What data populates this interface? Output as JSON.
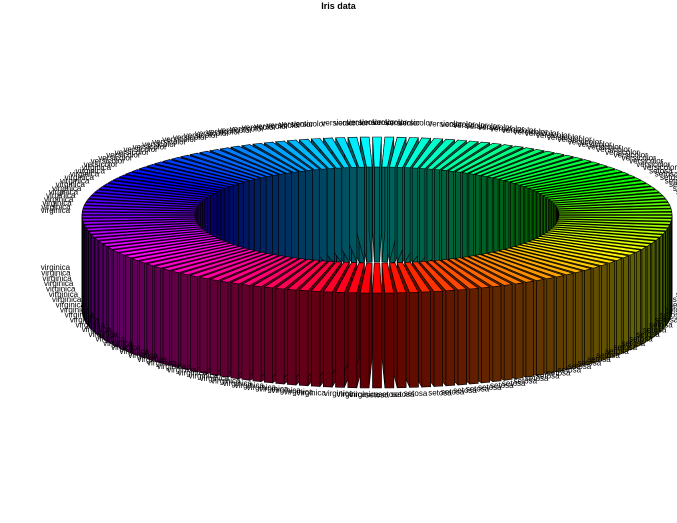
{
  "chart_data": {
    "type": "pie",
    "variant": "3d-donut",
    "title": "Iris data",
    "categories": [
      "setosa",
      "versicolor",
      "virginica"
    ],
    "counts": [
      50,
      50,
      50
    ],
    "slice_value": 1,
    "colormap": "hsv",
    "start": "bottom-center",
    "direction": "counterclockwise",
    "legend": "none"
  }
}
